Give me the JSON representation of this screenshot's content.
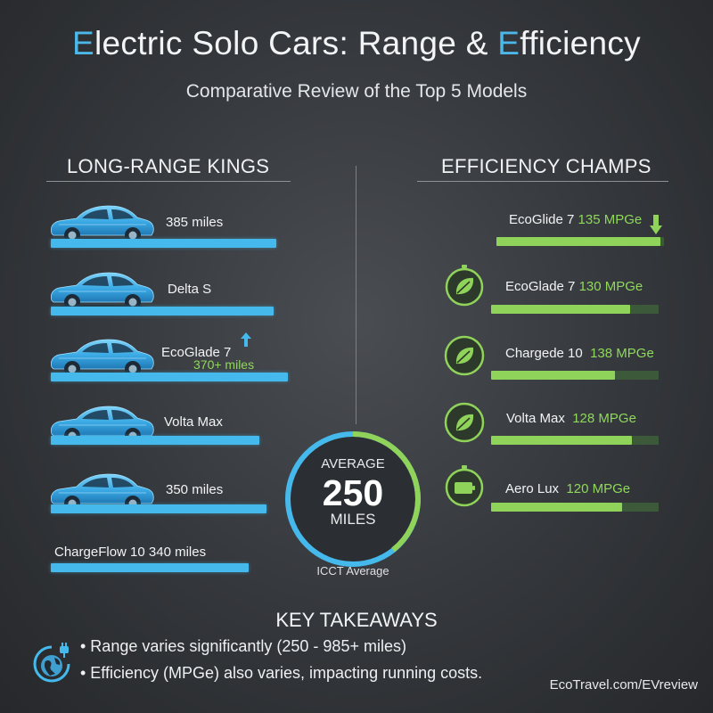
{
  "header": {
    "title_parts": [
      "E",
      "lectric Solo Cars: Range & ",
      "E",
      "fficiency"
    ],
    "subtitle": "Comparative Review of the Top 5 Models"
  },
  "range_section": {
    "title": "LONG-RANGE KINGS",
    "items": [
      {
        "label": "385 miles",
        "bar_value": 0.865,
        "icon": "car-icon"
      },
      {
        "label": "Delta S",
        "bar_value": 0.855,
        "icon": "car-icon"
      },
      {
        "label": "EcoGlade 7",
        "sub_label": "370+ miles",
        "bar_value": 0.91,
        "icon": "car-icon",
        "badge_icon": "up-arrow-icon"
      },
      {
        "label": "Volta Max",
        "bar_value": 0.8,
        "icon": "car-icon"
      },
      {
        "label": "350 miles",
        "bar_value": 0.83,
        "icon": "car-icon"
      },
      {
        "label": "ChargeFlow 10  340 miles",
        "bar_value": 0.76
      }
    ]
  },
  "efficiency_section": {
    "title": "EFFICIENCY CHAMPS",
    "items": [
      {
        "name": "EcoGlide 7",
        "value": "135 MPGe",
        "fill": 0.98,
        "icon": "down-arrow-icon"
      },
      {
        "name": "EcoGlade 7",
        "value": "130 MPGe",
        "fill": 0.83,
        "icon": "stopwatch-leaf-icon"
      },
      {
        "name": "Chargede 10",
        "value": "138 MPGe",
        "fill": 0.74,
        "icon": "leaf-icon"
      },
      {
        "name": "Volta Max",
        "value": "128 MPGe",
        "fill": 0.84,
        "icon": "leaf-icon"
      },
      {
        "name": "Aero Lux",
        "value": "120 MPGe",
        "fill": 0.78,
        "icon": "stopwatch-battery-icon"
      }
    ]
  },
  "gauge": {
    "top_label": "AVERAGE",
    "value": "250",
    "unit": "MILES",
    "caption": "ICCT Average"
  },
  "takeaways": {
    "title": "KEY TAKEAWAYS",
    "bullets": [
      "• Range varies significantly (250 - 985+ miles)",
      "• Efficiency (MPGe) also varies, impacting running costs."
    ],
    "icon": "globe-plug-icon"
  },
  "footer": {
    "url": "EcoTravel.com/EVreview"
  },
  "colors": {
    "blue": "#46b9ec",
    "green": "#8fd35a",
    "green_track": "#3c5a3a",
    "background": "#3a3d41"
  },
  "chart_data": [
    {
      "type": "bar",
      "title": "LONG-RANGE KINGS",
      "categories": [
        "385 miles",
        "Delta S",
        "EcoGlade 7",
        "Volta Max",
        "350 miles",
        "ChargeFlow 10  340 miles"
      ],
      "values": [
        0.865,
        0.855,
        0.91,
        0.8,
        0.83,
        0.76
      ]
    },
    {
      "type": "bar",
      "title": "EFFICIENCY CHAMPS",
      "categories": [
        "EcoGlide 7",
        "EcoGlade 7",
        "Chargede 10",
        "Volta Max",
        "Aero Lux"
      ],
      "values": [
        135,
        130,
        138,
        128,
        120
      ]
    }
  ]
}
